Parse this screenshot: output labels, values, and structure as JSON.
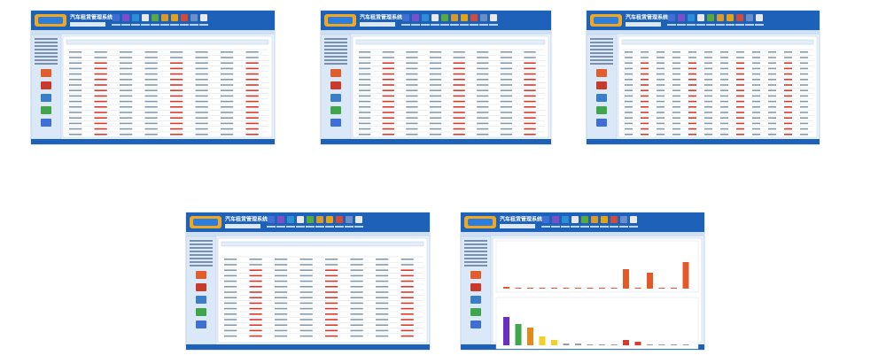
{
  "screens": [
    {
      "title": "汽车租赁管理系统"
    },
    {
      "title": "汽车租赁管理系统"
    },
    {
      "title": "汽车租赁管理系统"
    },
    {
      "title": "汽车租赁管理系统"
    },
    {
      "title": "汽车租赁管理系统"
    }
  ]
}
